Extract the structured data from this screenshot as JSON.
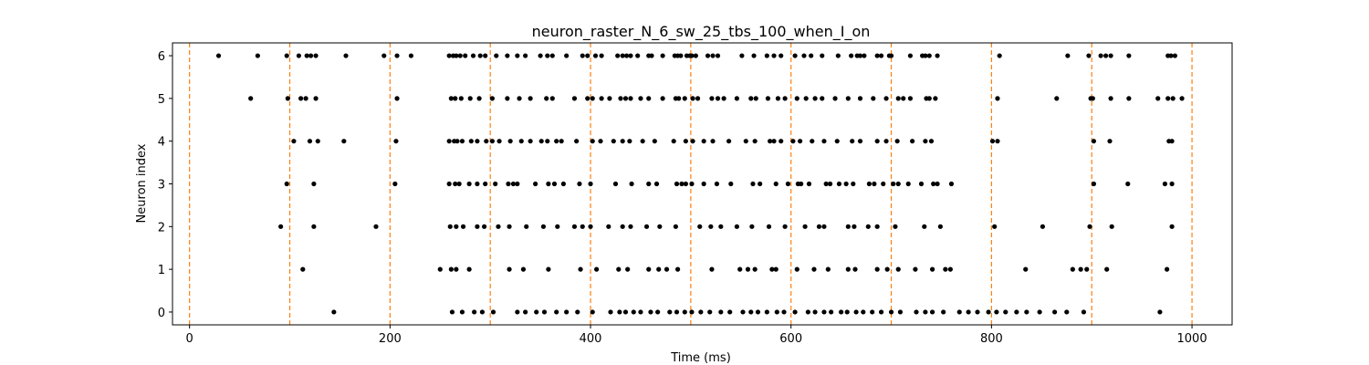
{
  "chart_data": {
    "type": "scatter",
    "title": "neuron_raster_N_6_sw_25_tbs_100_when_I_on",
    "xlabel": "Time (ms)",
    "ylabel": "Neuron index",
    "xlim": [
      -17,
      1040
    ],
    "ylim": [
      -0.3,
      6.3
    ],
    "xticks": [
      0,
      200,
      400,
      600,
      800,
      1000
    ],
    "yticks": [
      0,
      1,
      2,
      3,
      4,
      5,
      6
    ],
    "grid": false,
    "colors": {
      "spike": "#000000",
      "marker_line": "#ff7f0e",
      "axis": "#000000"
    },
    "vlines": [
      0,
      100,
      200,
      300,
      400,
      500,
      600,
      700,
      800,
      900,
      1000
    ],
    "spikes": [
      {
        "neuron": 6,
        "times": [
          29,
          68,
          97,
          109,
          117,
          121,
          126,
          156,
          194,
          207,
          221,
          259,
          263,
          266,
          270,
          275,
          283,
          290,
          295,
          306,
          317,
          327,
          335,
          350,
          357,
          362,
          376,
          392,
          397,
          405,
          411,
          427,
          432,
          436,
          440,
          447,
          458,
          461,
          472,
          484,
          487,
          490,
          496,
          499,
          501,
          505,
          517,
          522,
          527,
          551,
          563,
          576,
          583,
          590,
          604,
          613,
          620,
          631,
          647,
          660,
          666,
          669,
          673,
          686,
          690,
          698,
          700,
          719,
          731,
          734,
          738,
          746,
          808,
          876,
          897,
          909,
          914,
          919,
          937,
          976,
          979,
          983
        ]
      },
      {
        "neuron": 5,
        "times": [
          61,
          98,
          111,
          116,
          126,
          207,
          261,
          265,
          271,
          280,
          289,
          302,
          317,
          329,
          340,
          356,
          362,
          384,
          397,
          402,
          411,
          419,
          430,
          435,
          440,
          450,
          458,
          472,
          485,
          488,
          494,
          502,
          507,
          521,
          527,
          533,
          546,
          560,
          565,
          577,
          587,
          594,
          606,
          615,
          624,
          631,
          644,
          657,
          669,
          682,
          695,
          707,
          712,
          719,
          735,
          738,
          744,
          806,
          865,
          899,
          901,
          919,
          937,
          966,
          976,
          981,
          990
        ]
      },
      {
        "neuron": 4,
        "times": [
          104,
          120,
          128,
          154,
          206,
          259,
          264,
          267,
          272,
          281,
          287,
          296,
          302,
          309,
          320,
          331,
          340,
          351,
          357,
          366,
          371,
          386,
          402,
          410,
          423,
          432,
          439,
          452,
          464,
          483,
          495,
          502,
          513,
          522,
          538,
          555,
          564,
          579,
          583,
          590,
          602,
          609,
          621,
          633,
          646,
          661,
          669,
          686,
          695,
          706,
          721,
          734,
          740,
          801,
          806,
          902,
          918,
          977,
          980
        ]
      },
      {
        "neuron": 3,
        "times": [
          97,
          124,
          205,
          259,
          265,
          269,
          279,
          287,
          295,
          305,
          318,
          323,
          327,
          345,
          358,
          364,
          373,
          389,
          400,
          425,
          441,
          458,
          466,
          486,
          491,
          495,
          501,
          513,
          526,
          540,
          562,
          569,
          585,
          597,
          607,
          610,
          618,
          635,
          639,
          648,
          655,
          662,
          678,
          683,
          692,
          702,
          707,
          717,
          730,
          742,
          746,
          760,
          902,
          936,
          973,
          980
        ]
      },
      {
        "neuron": 2,
        "times": [
          91,
          124,
          186,
          260,
          266,
          273,
          287,
          294,
          308,
          319,
          336,
          353,
          367,
          384,
          392,
          400,
          418,
          432,
          440,
          456,
          469,
          485,
          509,
          520,
          530,
          546,
          561,
          578,
          594,
          614,
          628,
          633,
          657,
          663,
          677,
          686,
          704,
          733,
          749,
          803,
          851,
          898,
          920,
          980
        ]
      },
      {
        "neuron": 1,
        "times": [
          113,
          250,
          261,
          266,
          279,
          319,
          333,
          358,
          390,
          406,
          428,
          437,
          458,
          468,
          476,
          487,
          521,
          549,
          557,
          564,
          581,
          585,
          606,
          623,
          637,
          657,
          664,
          686,
          696,
          707,
          724,
          741,
          754,
          759,
          834,
          881,
          889,
          895,
          915,
          975
        ]
      },
      {
        "neuron": 0,
        "times": [
          144,
          262,
          272,
          284,
          292,
          303,
          327,
          335,
          346,
          354,
          366,
          376,
          387,
          402,
          420,
          429,
          435,
          443,
          450,
          460,
          467,
          479,
          486,
          494,
          501,
          510,
          519,
          530,
          539,
          552,
          560,
          567,
          576,
          586,
          593,
          604,
          617,
          624,
          633,
          640,
          650,
          656,
          665,
          672,
          681,
          690,
          700,
          709,
          725,
          734,
          741,
          752,
          768,
          777,
          786,
          797,
          805,
          814,
          825,
          835,
          848,
          863,
          875,
          892,
          968
        ]
      }
    ]
  }
}
